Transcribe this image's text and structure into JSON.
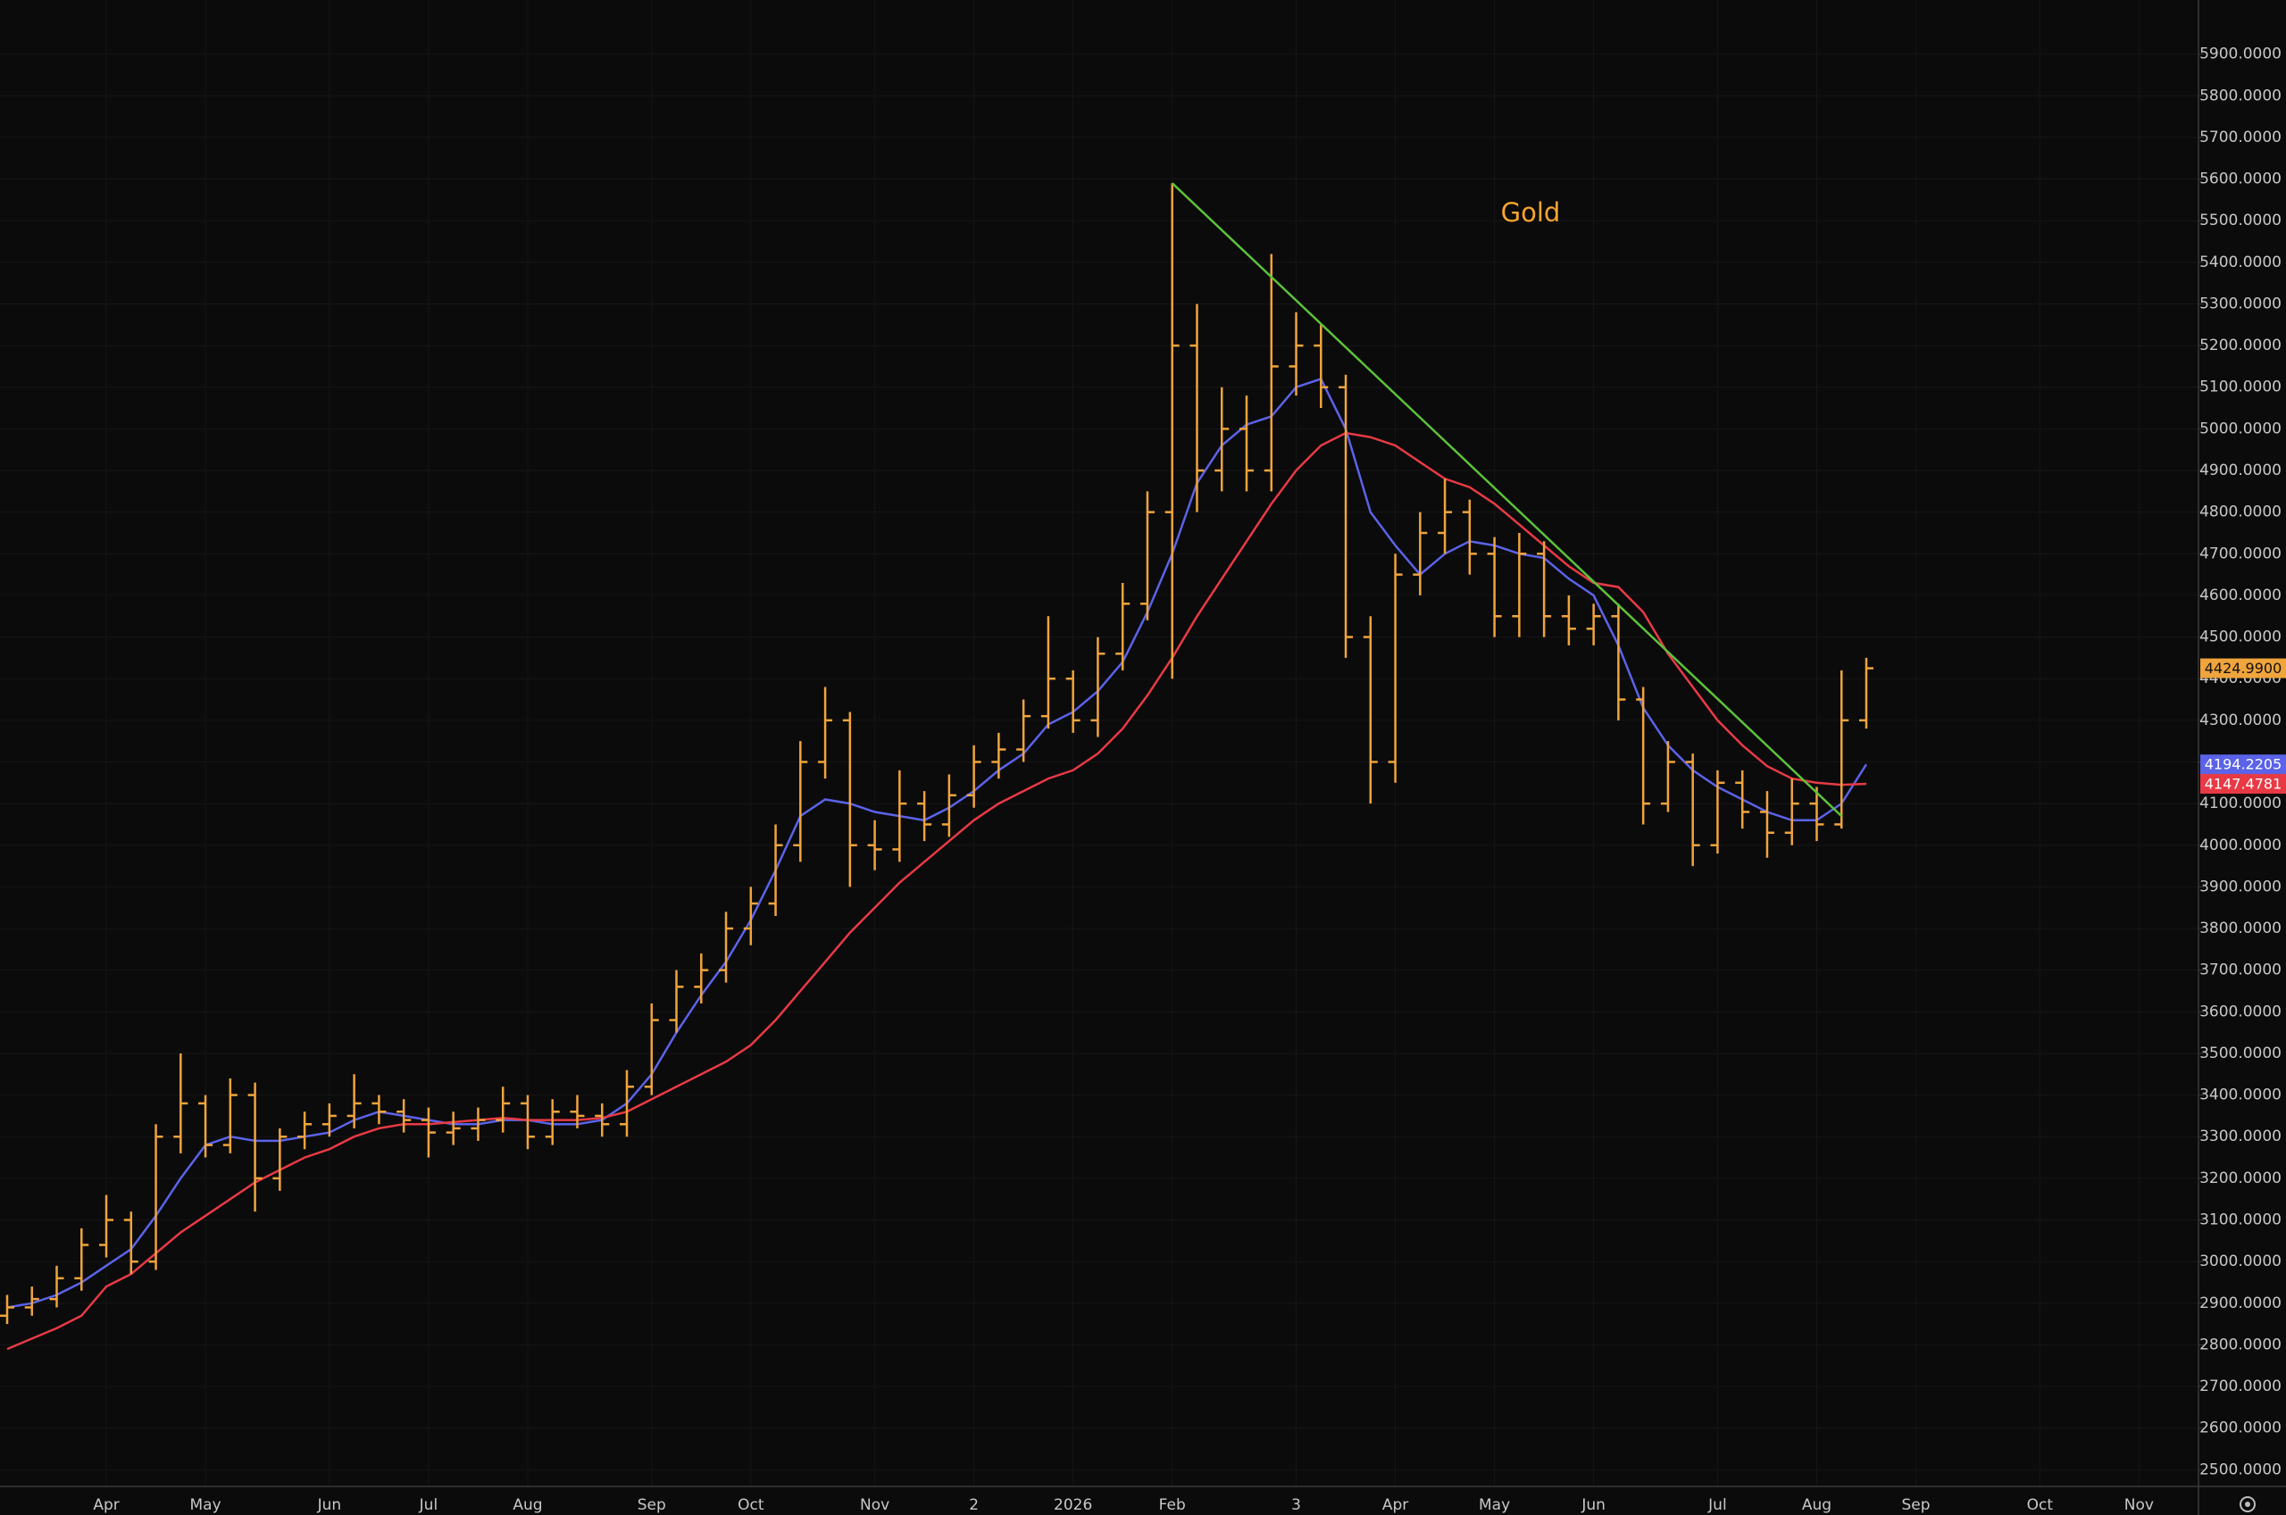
{
  "chart_data": {
    "type": "ohlc",
    "annotation": "Gold",
    "annotation_color": "#f7a531",
    "grid": true,
    "ylim": [
      2460,
      6030
    ],
    "yticks": [
      {
        "value": 2500,
        "label": "2500.0000"
      },
      {
        "value": 2600,
        "label": "2600.0000"
      },
      {
        "value": 2700,
        "label": "2700.0000"
      },
      {
        "value": 2800,
        "label": "2800.0000"
      },
      {
        "value": 2900,
        "label": "2900.0000"
      },
      {
        "value": 3000,
        "label": "3000.0000"
      },
      {
        "value": 3100,
        "label": "3100.0000"
      },
      {
        "value": 3200,
        "label": "3200.0000"
      },
      {
        "value": 3300,
        "label": "3300.0000"
      },
      {
        "value": 3400,
        "label": "3400.0000"
      },
      {
        "value": 3500,
        "label": "3500.0000"
      },
      {
        "value": 3600,
        "label": "3600.0000"
      },
      {
        "value": 3700,
        "label": "3700.0000"
      },
      {
        "value": 3800,
        "label": "3800.0000"
      },
      {
        "value": 3900,
        "label": "3900.0000"
      },
      {
        "value": 4000,
        "label": "4000.0000"
      },
      {
        "value": 4100,
        "label": "4100.0000"
      },
      {
        "value": 4200,
        "label": "4200.0000"
      },
      {
        "value": 4300,
        "label": "4300.0000"
      },
      {
        "value": 4400,
        "label": "4400.0000"
      },
      {
        "value": 4500,
        "label": "4500.0000"
      },
      {
        "value": 4600,
        "label": "4600.0000"
      },
      {
        "value": 4700,
        "label": "4700.0000"
      },
      {
        "value": 4800,
        "label": "4800.0000"
      },
      {
        "value": 4900,
        "label": "4900.0000"
      },
      {
        "value": 5000,
        "label": "5000.0000"
      },
      {
        "value": 5100,
        "label": "5100.0000"
      },
      {
        "value": 5200,
        "label": "5200.0000"
      },
      {
        "value": 5300,
        "label": "5300.0000"
      },
      {
        "value": 5400,
        "label": "5400.0000"
      },
      {
        "value": 5500,
        "label": "5500.0000"
      },
      {
        "value": 5600,
        "label": "5600.0000"
      },
      {
        "value": 5700,
        "label": "5700.0000"
      },
      {
        "value": 5800,
        "label": "5800.0000"
      },
      {
        "value": 5900,
        "label": "5900.0000"
      }
    ],
    "categories": [
      null,
      null,
      null,
      null,
      "Apr",
      null,
      null,
      null,
      "May",
      null,
      null,
      null,
      null,
      "Jun",
      null,
      null,
      null,
      "Jul",
      null,
      null,
      null,
      "Aug",
      null,
      null,
      null,
      null,
      "Sep",
      null,
      null,
      null,
      "Oct",
      null,
      null,
      null,
      null,
      "Nov",
      null,
      null,
      null,
      "2",
      null,
      null,
      null,
      "2026",
      null,
      null,
      null,
      "Feb",
      null,
      null,
      null,
      null,
      "3",
      null,
      null,
      null,
      "Apr",
      null,
      null,
      null,
      "May",
      null,
      null,
      null,
      "Jun",
      null,
      null,
      null,
      null,
      "Jul",
      null,
      null,
      null,
      "Aug",
      null,
      null,
      null,
      "Sep",
      null,
      null,
      null,
      null,
      "Oct",
      null,
      null,
      null,
      "Nov",
      null,
      null
    ],
    "ohlc": {
      "color": "#f0a43c",
      "last_value_label": "4424.9900",
      "open": [
        2870,
        2890,
        2910,
        2960,
        3040,
        3100,
        3000,
        3300,
        3380,
        3280,
        3400,
        3200,
        3300,
        3330,
        3350,
        3380,
        3360,
        3340,
        3310,
        3320,
        3340,
        3380,
        3300,
        3360,
        3350,
        3330,
        3420,
        3580,
        3660,
        3700,
        3800,
        3860,
        4000,
        4200,
        4300,
        4000,
        3990,
        4100,
        4050,
        4120,
        4200,
        4230,
        4310,
        4400,
        4300,
        4460,
        4580,
        4800,
        5200,
        4900,
        5000,
        4900,
        5150,
        5200,
        5100,
        4500,
        4200,
        4650,
        4750,
        4800,
        4700,
        4550,
        4700,
        4550,
        4520,
        4550,
        4350,
        4100,
        4200,
        4000,
        4150,
        4080,
        4030,
        4100,
        4050,
        4300,
        null,
        null,
        null,
        null,
        null,
        null,
        null,
        null,
        null,
        null,
        null,
        null,
        null
      ],
      "high": [
        2920,
        2940,
        2990,
        3080,
        3160,
        3120,
        3330,
        3500,
        3400,
        3440,
        3430,
        3320,
        3360,
        3380,
        3450,
        3400,
        3390,
        3370,
        3360,
        3370,
        3420,
        3400,
        3390,
        3400,
        3380,
        3460,
        3620,
        3700,
        3740,
        3840,
        3900,
        4050,
        4250,
        4380,
        4320,
        4060,
        4180,
        4130,
        4170,
        4240,
        4270,
        4350,
        4550,
        4420,
        4500,
        4630,
        4850,
        5590,
        5300,
        5100,
        5080,
        5420,
        5280,
        5250,
        5130,
        4550,
        4700,
        4800,
        4880,
        4830,
        4740,
        4750,
        4730,
        4600,
        4580,
        4580,
        4380,
        4250,
        4220,
        4180,
        4180,
        4130,
        4160,
        4140,
        4420,
        4450,
        null,
        null,
        null,
        null,
        null,
        null,
        null,
        null,
        null,
        null,
        null,
        null,
        null
      ],
      "low": [
        2850,
        2870,
        2890,
        2930,
        3010,
        2970,
        2980,
        3260,
        3250,
        3260,
        3120,
        3170,
        3270,
        3300,
        3320,
        3330,
        3310,
        3250,
        3280,
        3290,
        3310,
        3270,
        3280,
        3320,
        3300,
        3300,
        3400,
        3550,
        3620,
        3670,
        3760,
        3830,
        3960,
        4160,
        3900,
        3940,
        3960,
        4010,
        4020,
        4090,
        4160,
        4200,
        4280,
        4270,
        4260,
        4420,
        4540,
        4400,
        4800,
        4850,
        4850,
        4850,
        5080,
        5050,
        4450,
        4100,
        4150,
        4600,
        4700,
        4650,
        4500,
        4500,
        4500,
        4480,
        4480,
        4300,
        4050,
        4080,
        3950,
        3980,
        4040,
        3970,
        4000,
        4010,
        4040,
        4280,
        null,
        null,
        null,
        null,
        null,
        null,
        null,
        null,
        null,
        null,
        null,
        null,
        null
      ],
      "close": [
        2890,
        2910,
        2960,
        3040,
        3100,
        3000,
        3300,
        3380,
        3280,
        3400,
        3200,
        3300,
        3330,
        3350,
        3380,
        3360,
        3340,
        3310,
        3320,
        3340,
        3380,
        3300,
        3360,
        3350,
        3330,
        3420,
        3580,
        3660,
        3700,
        3800,
        3860,
        4000,
        4200,
        4300,
        4000,
        3990,
        4100,
        4050,
        4120,
        4200,
        4230,
        4310,
        4400,
        4300,
        4460,
        4580,
        4800,
        5200,
        4900,
        5000,
        4900,
        5150,
        5200,
        5100,
        4500,
        4200,
        4650,
        4750,
        4800,
        4700,
        4550,
        4700,
        4550,
        4520,
        4550,
        4350,
        4100,
        4200,
        4000,
        4150,
        4080,
        4030,
        4100,
        4050,
        4300,
        4424.99,
        null,
        null,
        null,
        null,
        null,
        null,
        null,
        null,
        null,
        null,
        null,
        null,
        null
      ]
    },
    "series": [
      {
        "color": "#5b63e8",
        "last_value_label": "4194.2205",
        "values": [
          2890,
          2900,
          2920,
          2950,
          2990,
          3030,
          3110,
          3200,
          3280,
          3300,
          3290,
          3290,
          3300,
          3310,
          3340,
          3360,
          3350,
          3340,
          3330,
          3330,
          3340,
          3340,
          3330,
          3330,
          3340,
          3380,
          3450,
          3550,
          3640,
          3720,
          3820,
          3940,
          4070,
          4110,
          4100,
          4080,
          4070,
          4060,
          4090,
          4130,
          4180,
          4220,
          4290,
          4320,
          4370,
          4440,
          4560,
          4700,
          4870,
          4960,
          5010,
          5030,
          5100,
          5120,
          5000,
          4800,
          4720,
          4650,
          4700,
          4730,
          4720,
          4700,
          4690,
          4640,
          4600,
          4480,
          4330,
          4240,
          4180,
          4140,
          4110,
          4080,
          4060,
          4060,
          4100,
          4194.2205,
          null,
          null,
          null,
          null,
          null,
          null,
          null,
          null,
          null,
          null,
          null,
          null,
          null
        ]
      },
      {
        "color": "#e83a45",
        "last_value_label": "4147.4781",
        "values": [
          2790,
          2815,
          2840,
          2870,
          2940,
          2970,
          3020,
          3070,
          3110,
          3150,
          3190,
          3220,
          3250,
          3270,
          3300,
          3320,
          3330,
          3330,
          3335,
          3340,
          3345,
          3340,
          3340,
          3340,
          3345,
          3360,
          3390,
          3420,
          3450,
          3480,
          3520,
          3580,
          3650,
          3720,
          3790,
          3850,
          3910,
          3960,
          4010,
          4060,
          4100,
          4130,
          4160,
          4180,
          4220,
          4280,
          4360,
          4450,
          4550,
          4640,
          4730,
          4820,
          4900,
          4960,
          4990,
          4980,
          4960,
          4920,
          4880,
          4860,
          4820,
          4770,
          4720,
          4670,
          4630,
          4620,
          4560,
          4460,
          4380,
          4300,
          4240,
          4190,
          4160,
          4150,
          4145,
          4147.4781,
          null,
          null,
          null,
          null,
          null,
          null,
          null,
          null,
          null,
          null,
          null,
          null,
          null
        ]
      }
    ],
    "trendline": {
      "color": "#5dc23a",
      "from": {
        "index": 47,
        "value": 5590
      },
      "to": {
        "index": 74,
        "value": 4070
      }
    }
  }
}
